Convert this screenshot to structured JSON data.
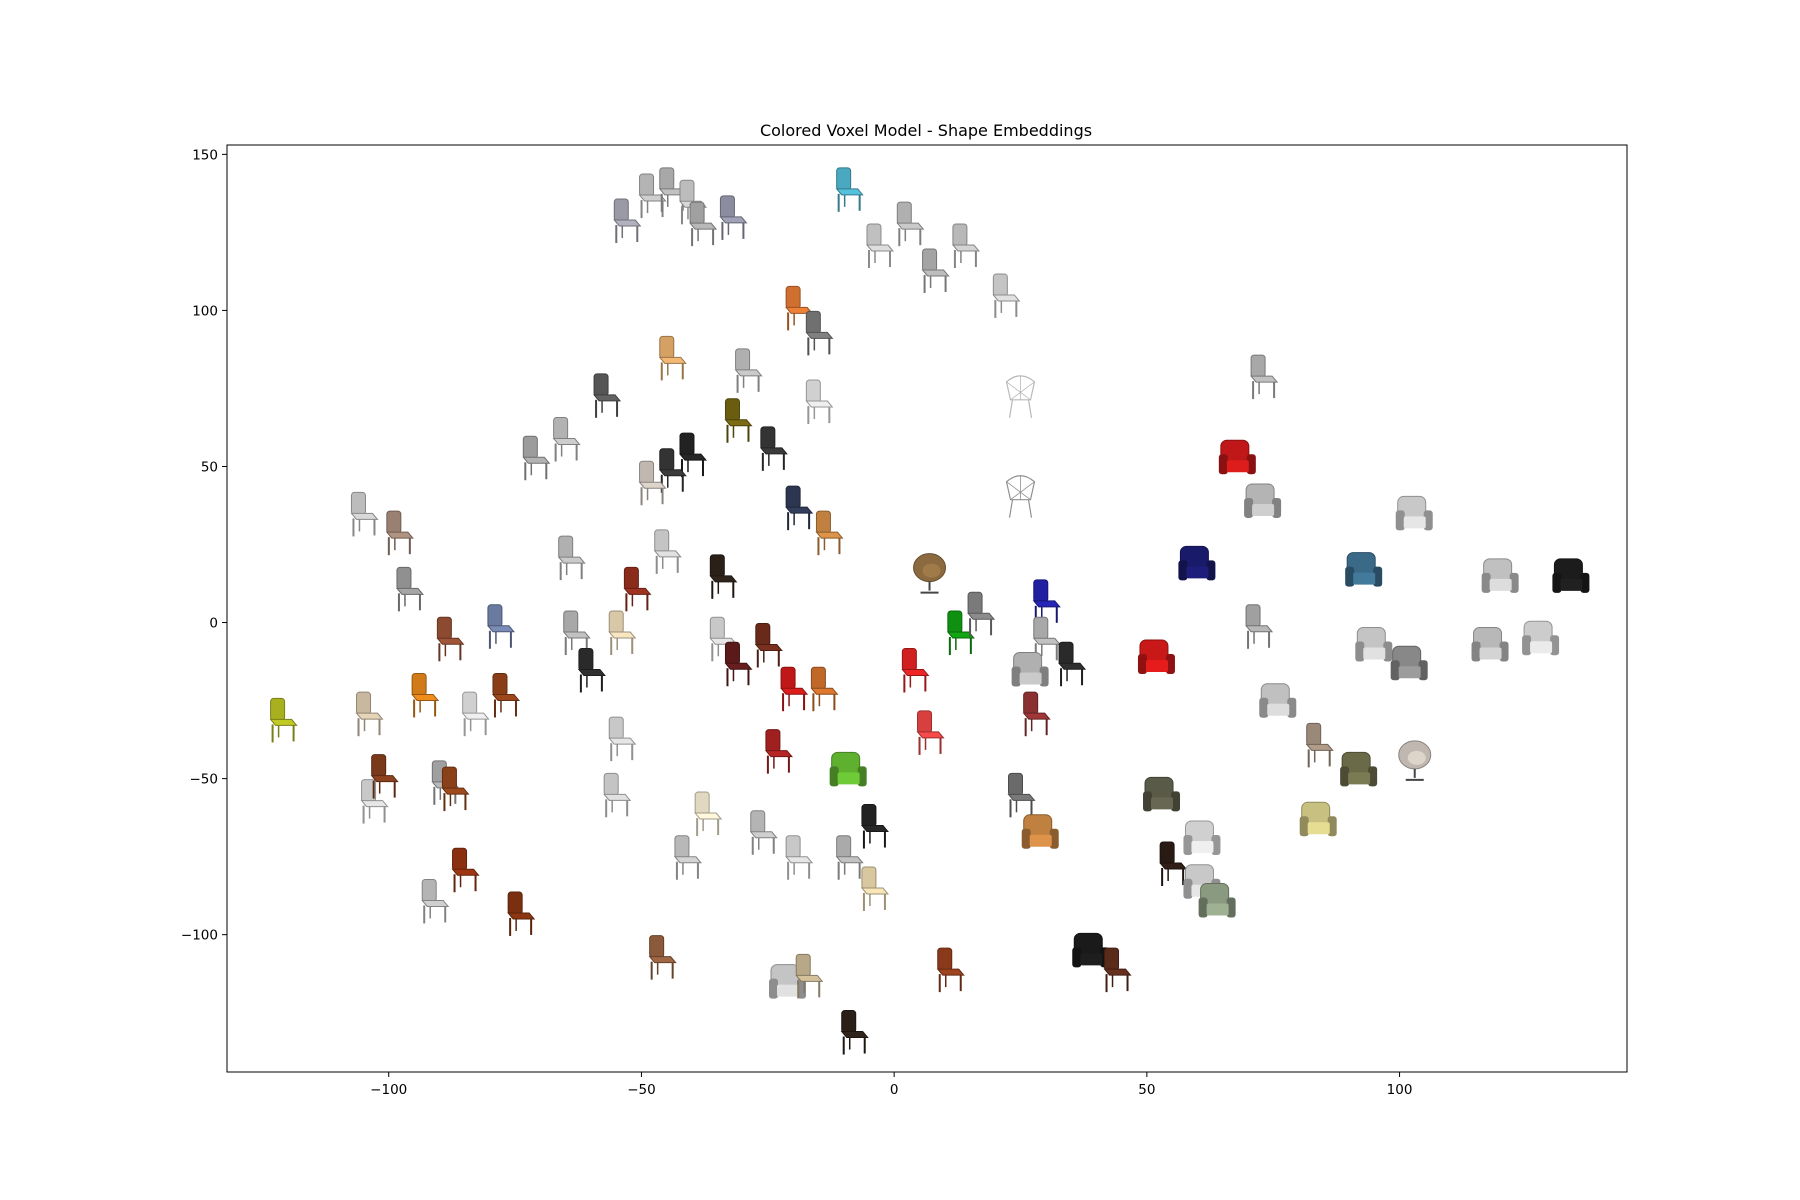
{
  "chart_data": {
    "type": "scatter",
    "title": "Colored Voxel Model - Shape Embeddings",
    "xlabel": "",
    "ylabel": "",
    "xlim": [
      -132,
      145
    ],
    "ylim": [
      -144,
      153
    ],
    "xticks": [
      -100,
      -50,
      0,
      50,
      100
    ],
    "yticks": [
      150,
      100,
      50,
      0,
      -50,
      -100
    ],
    "xtick_labels": [
      "−100",
      "−50",
      "0",
      "50",
      "100"
    ],
    "ytick_labels": [
      "150",
      "100",
      "50",
      "0",
      "−50",
      "−100"
    ],
    "grid": false,
    "marker": "chair-thumbnail",
    "points": [
      {
        "x": -53,
        "y": 128,
        "color": "#9a9aa6",
        "style": "side"
      },
      {
        "x": -48,
        "y": 136,
        "color": "#b4b4b4",
        "style": "side"
      },
      {
        "x": -44,
        "y": 138,
        "color": "#a8a8a8",
        "style": "side"
      },
      {
        "x": -40,
        "y": 134,
        "color": "#bcbcbc",
        "style": "side"
      },
      {
        "x": -38,
        "y": 127,
        "color": "#a0a0a0",
        "style": "side"
      },
      {
        "x": -32,
        "y": 129,
        "color": "#8c8ca0",
        "style": "side"
      },
      {
        "x": -9,
        "y": 138,
        "color": "#4aa8c0",
        "style": "side"
      },
      {
        "x": -3,
        "y": 120,
        "color": "#c0c0c0",
        "style": "side"
      },
      {
        "x": 3,
        "y": 127,
        "color": "#b0b0b0",
        "style": "side"
      },
      {
        "x": 8,
        "y": 112,
        "color": "#a4a4a4",
        "style": "side"
      },
      {
        "x": 14,
        "y": 120,
        "color": "#b8b8b8",
        "style": "side"
      },
      {
        "x": 22,
        "y": 104,
        "color": "#c4c4c4",
        "style": "side"
      },
      {
        "x": -19,
        "y": 100,
        "color": "#d07030",
        "style": "side"
      },
      {
        "x": -15,
        "y": 92,
        "color": "#707070",
        "style": "side"
      },
      {
        "x": -44,
        "y": 84,
        "color": "#d4a064",
        "style": "side"
      },
      {
        "x": -29,
        "y": 80,
        "color": "#b0b0b0",
        "style": "side"
      },
      {
        "x": -57,
        "y": 72,
        "color": "#555555",
        "style": "side"
      },
      {
        "x": -15,
        "y": 70,
        "color": "#d0d0d0",
        "style": "side"
      },
      {
        "x": -31,
        "y": 64,
        "color": "#6b5d10",
        "style": "side"
      },
      {
        "x": -71,
        "y": 52,
        "color": "#9c9c9c",
        "style": "side"
      },
      {
        "x": -65,
        "y": 58,
        "color": "#b2b2b2",
        "style": "side"
      },
      {
        "x": -40,
        "y": 53,
        "color": "#222222",
        "style": "side"
      },
      {
        "x": -44,
        "y": 48,
        "color": "#333333",
        "style": "side"
      },
      {
        "x": -48,
        "y": 44,
        "color": "#c0b8b0",
        "style": "side"
      },
      {
        "x": -24,
        "y": 55,
        "color": "#333333",
        "style": "side"
      },
      {
        "x": 25,
        "y": 72,
        "color": "#b8b8b8",
        "style": "wire"
      },
      {
        "x": 73,
        "y": 78,
        "color": "#a8a8a8",
        "style": "side"
      },
      {
        "x": -19,
        "y": 36,
        "color": "#2c3650",
        "style": "side"
      },
      {
        "x": -13,
        "y": 28,
        "color": "#c08040",
        "style": "side"
      },
      {
        "x": 25,
        "y": 40,
        "color": "#909090",
        "style": "wire"
      },
      {
        "x": 68,
        "y": 52,
        "color": "#c01818",
        "style": "arm"
      },
      {
        "x": 73,
        "y": 38,
        "color": "#b4b4b4",
        "style": "arm"
      },
      {
        "x": 103,
        "y": 34,
        "color": "#c8c8c8",
        "style": "arm"
      },
      {
        "x": -105,
        "y": 34,
        "color": "#bcbcbc",
        "style": "side"
      },
      {
        "x": -98,
        "y": 28,
        "color": "#9a8070",
        "style": "side"
      },
      {
        "x": -64,
        "y": 20,
        "color": "#b0b0b0",
        "style": "side"
      },
      {
        "x": -45,
        "y": 22,
        "color": "#c4c4c4",
        "style": "side"
      },
      {
        "x": -34,
        "y": 14,
        "color": "#2a2018",
        "style": "side"
      },
      {
        "x": -51,
        "y": 10,
        "color": "#8a2c1c",
        "style": "side"
      },
      {
        "x": 7,
        "y": 16,
        "color": "#8c6a40",
        "style": "round"
      },
      {
        "x": 60,
        "y": 18,
        "color": "#1a1a6a",
        "style": "arm"
      },
      {
        "x": 93,
        "y": 16,
        "color": "#3a6a88",
        "style": "arm"
      },
      {
        "x": 120,
        "y": 14,
        "color": "#c0c0c0",
        "style": "arm"
      },
      {
        "x": 134,
        "y": 14,
        "color": "#1c1c1c",
        "style": "arm"
      },
      {
        "x": -96,
        "y": 10,
        "color": "#909090",
        "style": "side"
      },
      {
        "x": -88,
        "y": -6,
        "color": "#8c4a30",
        "style": "side"
      },
      {
        "x": -78,
        "y": -2,
        "color": "#6a7aa0",
        "style": "side"
      },
      {
        "x": -63,
        "y": -4,
        "color": "#a8a8a8",
        "style": "side"
      },
      {
        "x": -54,
        "y": -4,
        "color": "#d8c8a8",
        "style": "side"
      },
      {
        "x": -34,
        "y": -6,
        "color": "#c8c8c8",
        "style": "side"
      },
      {
        "x": -25,
        "y": -8,
        "color": "#6a2a1a",
        "style": "side"
      },
      {
        "x": -31,
        "y": -14,
        "color": "#5a1a1a",
        "style": "side"
      },
      {
        "x": 13,
        "y": -4,
        "color": "#109010",
        "style": "side"
      },
      {
        "x": 17,
        "y": 2,
        "color": "#7a7a7a",
        "style": "side"
      },
      {
        "x": 30,
        "y": 6,
        "color": "#2020a0",
        "style": "side"
      },
      {
        "x": 30,
        "y": -6,
        "color": "#a8a8a8",
        "style": "side"
      },
      {
        "x": 72,
        "y": -2,
        "color": "#a0a0a0",
        "style": "side"
      },
      {
        "x": 95,
        "y": -8,
        "color": "#c4c4c4",
        "style": "arm"
      },
      {
        "x": 102,
        "y": -14,
        "color": "#888888",
        "style": "arm"
      },
      {
        "x": 118,
        "y": -8,
        "color": "#b8b8b8",
        "style": "arm"
      },
      {
        "x": 128,
        "y": -6,
        "color": "#cccccc",
        "style": "arm"
      },
      {
        "x": -121,
        "y": -32,
        "color": "#a8b020",
        "style": "side"
      },
      {
        "x": -104,
        "y": -30,
        "color": "#c8b8a0",
        "style": "side"
      },
      {
        "x": -93,
        "y": -24,
        "color": "#d07a18",
        "style": "side"
      },
      {
        "x": -83,
        "y": -30,
        "color": "#d0d0d0",
        "style": "side"
      },
      {
        "x": -77,
        "y": -24,
        "color": "#8a3e18",
        "style": "side"
      },
      {
        "x": -60,
        "y": -16,
        "color": "#2a2a2a",
        "style": "side"
      },
      {
        "x": -54,
        "y": -38,
        "color": "#c8c8c8",
        "style": "side"
      },
      {
        "x": -20,
        "y": -22,
        "color": "#c01818",
        "style": "side"
      },
      {
        "x": -14,
        "y": -22,
        "color": "#c06828",
        "style": "side"
      },
      {
        "x": 4,
        "y": -16,
        "color": "#d02020",
        "style": "side"
      },
      {
        "x": 7,
        "y": -36,
        "color": "#d84040",
        "style": "side"
      },
      {
        "x": 27,
        "y": -16,
        "color": "#b0b0b0",
        "style": "arm"
      },
      {
        "x": 28,
        "y": -30,
        "color": "#8a3030",
        "style": "side"
      },
      {
        "x": 35,
        "y": -14,
        "color": "#2a2a2a",
        "style": "side"
      },
      {
        "x": 52,
        "y": -12,
        "color": "#c81818",
        "style": "arm"
      },
      {
        "x": 76,
        "y": -26,
        "color": "#c0c0c0",
        "style": "arm"
      },
      {
        "x": 84,
        "y": -40,
        "color": "#9a8878",
        "style": "side"
      },
      {
        "x": 92,
        "y": -48,
        "color": "#6a6a48",
        "style": "arm"
      },
      {
        "x": 103,
        "y": -44,
        "color": "#c0b8b0",
        "style": "round"
      },
      {
        "x": -103,
        "y": -58,
        "color": "#c8c8c8",
        "style": "side"
      },
      {
        "x": -101,
        "y": -50,
        "color": "#7a3a1a",
        "style": "side"
      },
      {
        "x": -89,
        "y": -52,
        "color": "#a0a0a0",
        "style": "side"
      },
      {
        "x": -87,
        "y": -54,
        "color": "#8a4018",
        "style": "side"
      },
      {
        "x": -55,
        "y": -56,
        "color": "#c4c4c4",
        "style": "side"
      },
      {
        "x": -23,
        "y": -42,
        "color": "#a02020",
        "style": "side"
      },
      {
        "x": -9,
        "y": -48,
        "color": "#60b030",
        "style": "arm"
      },
      {
        "x": -37,
        "y": -62,
        "color": "#e0d8c0",
        "style": "side"
      },
      {
        "x": -26,
        "y": -68,
        "color": "#b4b4b4",
        "style": "side"
      },
      {
        "x": -19,
        "y": -76,
        "color": "#c8c8c8",
        "style": "side"
      },
      {
        "x": -41,
        "y": -76,
        "color": "#b8b8b8",
        "style": "side"
      },
      {
        "x": -4,
        "y": -66,
        "color": "#222222",
        "style": "side"
      },
      {
        "x": -9,
        "y": -76,
        "color": "#aaaaaa",
        "style": "side"
      },
      {
        "x": -4,
        "y": -86,
        "color": "#d8c8a0",
        "style": "side"
      },
      {
        "x": 25,
        "y": -56,
        "color": "#6a6a6a",
        "style": "side"
      },
      {
        "x": 29,
        "y": -68,
        "color": "#c08040",
        "style": "arm"
      },
      {
        "x": 53,
        "y": -56,
        "color": "#5a5a48",
        "style": "arm"
      },
      {
        "x": 61,
        "y": -70,
        "color": "#d0d0d0",
        "style": "arm"
      },
      {
        "x": 55,
        "y": -78,
        "color": "#2a1a14",
        "style": "side"
      },
      {
        "x": 61,
        "y": -84,
        "color": "#c8c8c8",
        "style": "arm"
      },
      {
        "x": 64,
        "y": -90,
        "color": "#8a9a80",
        "style": "arm"
      },
      {
        "x": 84,
        "y": -64,
        "color": "#c8c080",
        "style": "arm"
      },
      {
        "x": -91,
        "y": -90,
        "color": "#b4b4b4",
        "style": "side"
      },
      {
        "x": -85,
        "y": -80,
        "color": "#8a3010",
        "style": "side"
      },
      {
        "x": -74,
        "y": -94,
        "color": "#7a3010",
        "style": "side"
      },
      {
        "x": -46,
        "y": -108,
        "color": "#8a5a3a",
        "style": "side"
      },
      {
        "x": -21,
        "y": -116,
        "color": "#c4c4c4",
        "style": "arm"
      },
      {
        "x": -17,
        "y": -114,
        "color": "#b8a888",
        "style": "side"
      },
      {
        "x": 11,
        "y": -112,
        "color": "#8a3a1a",
        "style": "side"
      },
      {
        "x": 39,
        "y": -106,
        "color": "#1a1a1a",
        "style": "arm"
      },
      {
        "x": 44,
        "y": -112,
        "color": "#5a2a1a",
        "style": "side"
      },
      {
        "x": -8,
        "y": -132,
        "color": "#2a2018",
        "style": "side"
      }
    ]
  }
}
